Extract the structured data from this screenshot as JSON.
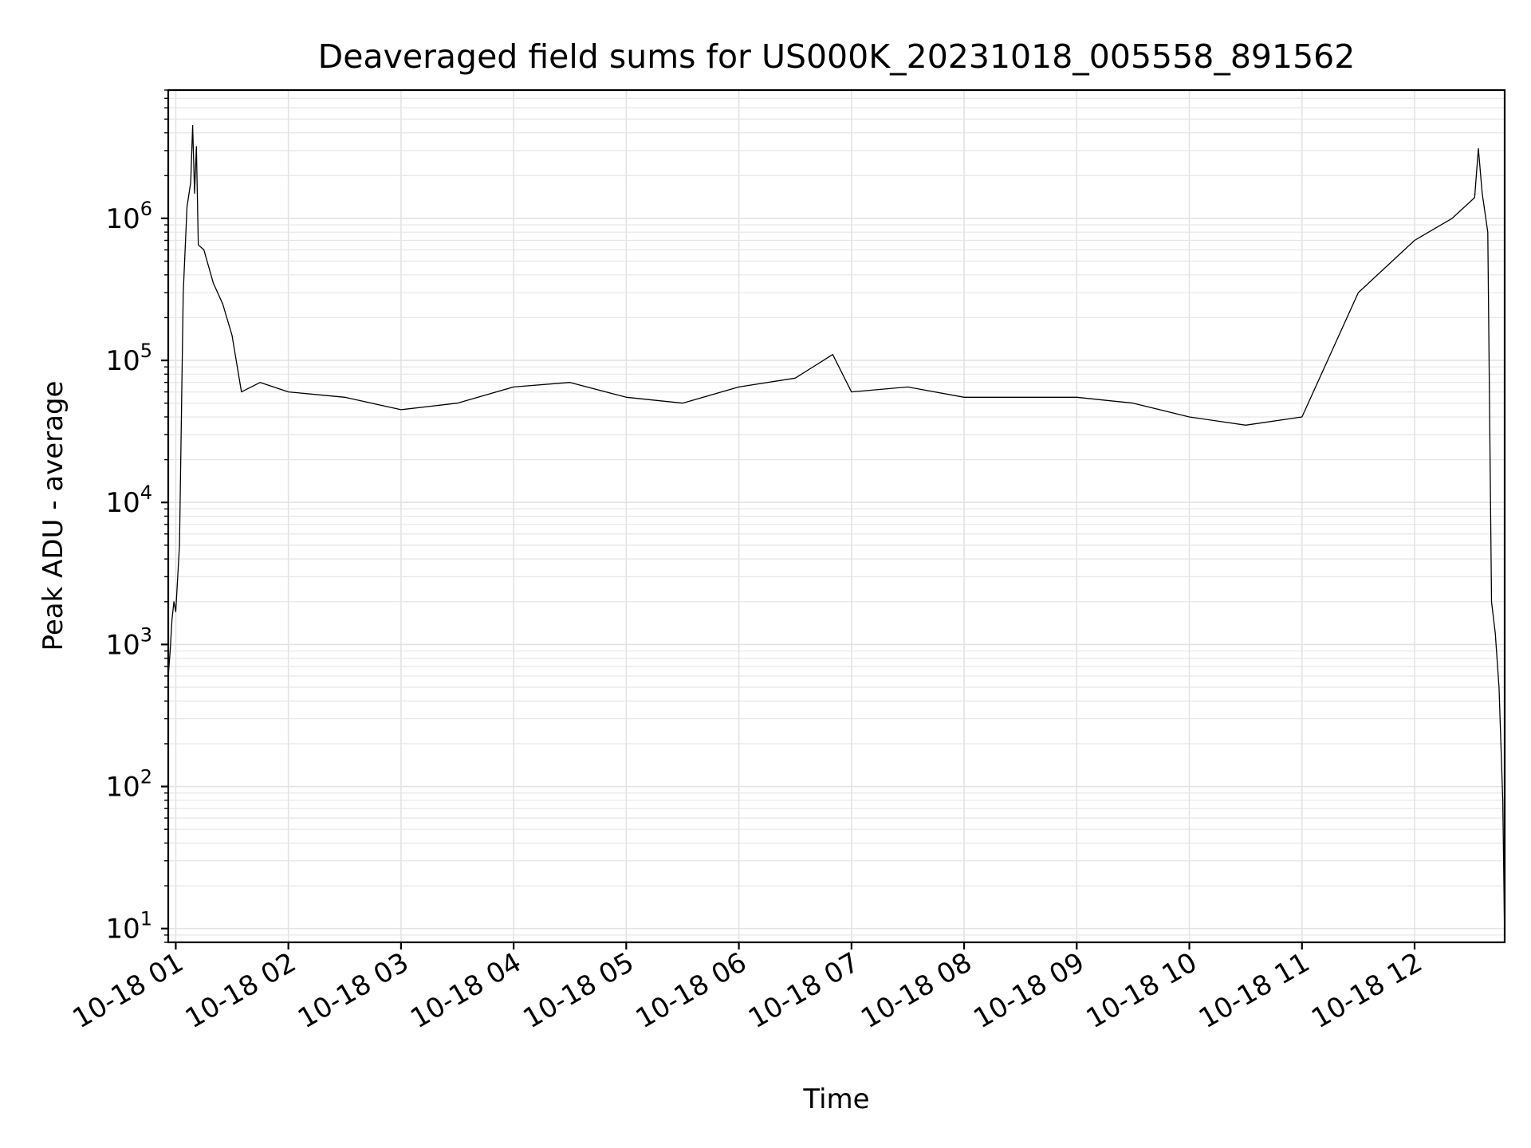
{
  "chart_data": {
    "type": "line",
    "title": "Deaveraged field sums for US000K_20231018_005558_891562",
    "xlabel": "Time",
    "ylabel": "Peak ADU - average",
    "yscale": "log",
    "ylim": [
      8,
      8000000
    ],
    "xlim": [
      "2023-10-18T00:56:00",
      "2023-10-18T12:48:00"
    ],
    "grid": true,
    "x_tick_labels": [
      "10-18 01",
      "10-18 02",
      "10-18 03",
      "10-18 04",
      "10-18 05",
      "10-18 06",
      "10-18 07",
      "10-18 08",
      "10-18 09",
      "10-18 10",
      "10-18 11",
      "10-18 12"
    ],
    "x_ticks": [
      "2023-10-18T01:00",
      "2023-10-18T02:00",
      "2023-10-18T03:00",
      "2023-10-18T04:00",
      "2023-10-18T05:00",
      "2023-10-18T06:00",
      "2023-10-18T07:00",
      "2023-10-18T08:00",
      "2023-10-18T09:00",
      "2023-10-18T10:00",
      "2023-10-18T11:00",
      "2023-10-18T12:00"
    ],
    "y_ticks": [
      10,
      100,
      1000,
      10000,
      100000,
      1000000
    ],
    "y_tick_labels": [
      {
        "base": "10",
        "exp": "1"
      },
      {
        "base": "10",
        "exp": "2"
      },
      {
        "base": "10",
        "exp": "3"
      },
      {
        "base": "10",
        "exp": "4"
      },
      {
        "base": "10",
        "exp": "5"
      },
      {
        "base": "10",
        "exp": "6"
      }
    ],
    "series": [
      {
        "color": "#000000",
        "points": [
          [
            "2023-10-18T00:56",
            600
          ],
          [
            "2023-10-18T00:57",
            900
          ],
          [
            "2023-10-18T00:58",
            1500
          ],
          [
            "2023-10-18T00:59",
            2000
          ],
          [
            "2023-10-18T01:00",
            1700
          ],
          [
            "2023-10-18T01:02",
            5000
          ],
          [
            "2023-10-18T01:04",
            300000
          ],
          [
            "2023-10-18T01:06",
            1200000
          ],
          [
            "2023-10-18T01:08",
            1800000
          ],
          [
            "2023-10-18T01:09",
            4500000
          ],
          [
            "2023-10-18T01:10",
            1500000
          ],
          [
            "2023-10-18T01:11",
            3200000
          ],
          [
            "2023-10-18T01:12",
            650000
          ],
          [
            "2023-10-18T01:15",
            600000
          ],
          [
            "2023-10-18T01:20",
            350000
          ],
          [
            "2023-10-18T01:25",
            250000
          ],
          [
            "2023-10-18T01:30",
            150000
          ],
          [
            "2023-10-18T01:35",
            60000
          ],
          [
            "2023-10-18T01:45",
            70000
          ],
          [
            "2023-10-18T02:00",
            60000
          ],
          [
            "2023-10-18T02:30",
            55000
          ],
          [
            "2023-10-18T03:00",
            45000
          ],
          [
            "2023-10-18T03:30",
            50000
          ],
          [
            "2023-10-18T04:00",
            65000
          ],
          [
            "2023-10-18T04:30",
            70000
          ],
          [
            "2023-10-18T05:00",
            55000
          ],
          [
            "2023-10-18T05:30",
            50000
          ],
          [
            "2023-10-18T06:00",
            65000
          ],
          [
            "2023-10-18T06:30",
            75000
          ],
          [
            "2023-10-18T06:50",
            110000
          ],
          [
            "2023-10-18T07:00",
            60000
          ],
          [
            "2023-10-18T07:30",
            65000
          ],
          [
            "2023-10-18T08:00",
            55000
          ],
          [
            "2023-10-18T08:30",
            55000
          ],
          [
            "2023-10-18T09:00",
            55000
          ],
          [
            "2023-10-18T09:30",
            50000
          ],
          [
            "2023-10-18T10:00",
            40000
          ],
          [
            "2023-10-18T10:30",
            35000
          ],
          [
            "2023-10-18T11:00",
            40000
          ],
          [
            "2023-10-18T11:30",
            300000
          ],
          [
            "2023-10-18T12:00",
            700000
          ],
          [
            "2023-10-18T12:20",
            1000000
          ],
          [
            "2023-10-18T12:32",
            1400000
          ],
          [
            "2023-10-18T12:34",
            3100000
          ],
          [
            "2023-10-18T12:36",
            1500000
          ],
          [
            "2023-10-18T12:39",
            800000
          ],
          [
            "2023-10-18T12:41",
            2000
          ],
          [
            "2023-10-18T12:43",
            1200
          ],
          [
            "2023-10-18T12:45",
            500
          ],
          [
            "2023-10-18T12:47",
            80
          ],
          [
            "2023-10-18T12:48",
            8
          ]
        ]
      }
    ]
  }
}
